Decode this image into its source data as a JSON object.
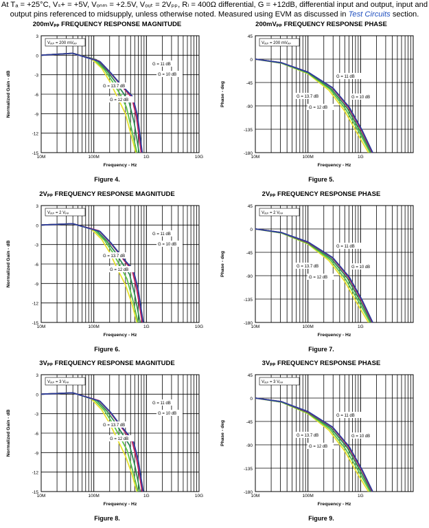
{
  "header": {
    "text": "At Tₐ = +25°C, Vₛ+ = +5V, Vₒₙₘ = +2.5V, Vₒᵤₜ = 2Vₚₚ, Rₗ = 400Ω differential, G = +12dB, differential input and output, input and output pins referenced to midsupply, unless otherwise noted. Measured using EVM as discussed in",
    "link": "Test Circuits",
    "tail": "section."
  },
  "colors": {
    "g137": "#e8e22e",
    "g12": "#5cc24a",
    "g11": "#2e8b57",
    "g10": "#c41e5b",
    "g10b": "#2a3f9d"
  },
  "chart_data": [
    {
      "type": "line",
      "kind": "mag",
      "figure": "Figure 4.",
      "title": "200mVₚₚ FREQUENCY RESPONSE MAGNITUDE",
      "xlabel": "Frequency - Hz",
      "ylabel": "Normalized Gain - dB",
      "xticks": [
        "10M",
        "100M",
        "1G",
        "10G"
      ],
      "yticks": [
        "3",
        "0",
        "-3",
        "-6",
        "-9",
        "-12",
        "-15"
      ],
      "ylim": [
        -15,
        3
      ],
      "xlim_log": [
        7,
        10
      ],
      "legend_box": "Vₒᵤₜ = 200 mVₚₚ",
      "annotations": [
        "G = 11 dB",
        "G = 10 dB",
        "G = 13.7 dB",
        "G = 12 dB"
      ],
      "series": [
        {
          "name": "G = 13.7 dB",
          "color": "#e8e22e",
          "x": [
            7,
            7.6,
            7.95,
            8.15,
            8.3,
            8.45,
            8.6,
            8.7,
            8.8
          ],
          "y": [
            0,
            0.3,
            -0.5,
            -2,
            -4,
            -6.5,
            -9,
            -12,
            -15
          ]
        },
        {
          "name": "G = 12 dB",
          "color": "#5cc24a",
          "x": [
            7,
            7.6,
            8.0,
            8.2,
            8.35,
            8.5,
            8.62,
            8.72,
            8.82
          ],
          "y": [
            0,
            0.3,
            -0.6,
            -2.2,
            -4,
            -6,
            -8,
            -11.5,
            -15
          ]
        },
        {
          "name": "G = 11 dB",
          "color": "#2e8b57",
          "x": [
            7,
            7.6,
            8.05,
            8.25,
            8.4,
            8.55,
            8.67,
            8.77,
            8.86
          ],
          "y": [
            0,
            0.3,
            -0.7,
            -2.4,
            -4,
            -5.7,
            -7.2,
            -10.5,
            -15
          ]
        },
        {
          "name": "G = 10 dB",
          "color": "#c41e5b",
          "x": [
            7,
            7.6,
            8.1,
            8.3,
            8.45,
            8.6,
            8.72,
            8.81,
            8.9
          ],
          "y": [
            0,
            0.3,
            -0.9,
            -2.6,
            -4,
            -5.4,
            -6.5,
            -9.5,
            -15
          ]
        },
        {
          "name": "G = 10 dB",
          "color": "#2a3f9d",
          "x": [
            7,
            7.6,
            8.12,
            8.32,
            8.47,
            8.62,
            8.74,
            8.83,
            8.92
          ],
          "y": [
            0,
            0.3,
            -1.0,
            -2.7,
            -4.1,
            -5.4,
            -6.4,
            -9.3,
            -15
          ]
        }
      ]
    },
    {
      "type": "line",
      "kind": "phase",
      "figure": "Figure 5.",
      "title": "200mVₚₚ FREQUENCY RESPONSE PHASE",
      "xlabel": "Frequency - Hz",
      "ylabel": "Phase - deg",
      "xticks": [
        "10M",
        "100M",
        "1G"
      ],
      "yticks": [
        "45",
        "0",
        "-45",
        "-90",
        "-135",
        "-180"
      ],
      "ylim": [
        -180,
        45
      ],
      "xlim_log": [
        7,
        10
      ],
      "legend_box": "Vₒᵤₜ = 200 mVₚₚ",
      "annotations": [
        "G = 11 dB",
        "G = 13.7 dB",
        "G = 10 dB",
        "G = 12 dB"
      ],
      "series": [
        {
          "name": "G = 13.7 dB",
          "color": "#e8e22e",
          "x": [
            7,
            7.5,
            8.0,
            8.4,
            8.7,
            8.95,
            9.15
          ],
          "y": [
            0,
            -8,
            -28,
            -60,
            -100,
            -145,
            -180
          ]
        },
        {
          "name": "G = 12 dB",
          "color": "#5cc24a",
          "x": [
            7,
            7.5,
            8.0,
            8.42,
            8.72,
            8.98,
            9.18
          ],
          "y": [
            0,
            -8,
            -27,
            -58,
            -97,
            -142,
            -180
          ]
        },
        {
          "name": "G = 11 dB",
          "color": "#2e8b57",
          "x": [
            7,
            7.5,
            8.0,
            8.44,
            8.75,
            9.0,
            9.2
          ],
          "y": [
            0,
            -7,
            -26,
            -57,
            -95,
            -140,
            -180
          ]
        },
        {
          "name": "G = 10 dB",
          "color": "#c41e5b",
          "x": [
            7,
            7.5,
            8.0,
            8.46,
            8.77,
            9.02,
            9.22
          ],
          "y": [
            0,
            -7,
            -25,
            -55,
            -93,
            -138,
            -180
          ]
        },
        {
          "name": "G = 10 dB",
          "color": "#2a3f9d",
          "x": [
            7,
            7.5,
            8.0,
            8.47,
            8.78,
            9.03,
            9.23
          ],
          "y": [
            0,
            -7,
            -25,
            -55,
            -92,
            -137,
            -180
          ]
        }
      ]
    },
    {
      "type": "line",
      "kind": "mag",
      "figure": "Figure 6.",
      "title": "2Vₚₚ FREQUENCY RESPONSE MAGNITUDE",
      "xlabel": "Frequency - Hz",
      "ylabel": "Normalized Gain - dB",
      "xticks": [
        "10M",
        "100M",
        "1G",
        "10G"
      ],
      "yticks": [
        "3",
        "0",
        "-3",
        "-6",
        "-9",
        "-12",
        "-15"
      ],
      "ylim": [
        -15,
        3
      ],
      "xlim_log": [
        7,
        10
      ],
      "legend_box": "Vₒᵤₜ = 2 Vₚₚ",
      "annotations": [
        "G = 11 dB",
        "G = 10 dB",
        "G = 13.7 dB",
        "G = 12 dB"
      ],
      "series": [
        {
          "name": "G = 13.7 dB",
          "color": "#e8e22e",
          "x": [
            7,
            7.6,
            7.95,
            8.15,
            8.3,
            8.45,
            8.6,
            8.72,
            8.82
          ],
          "y": [
            0,
            0.2,
            -0.6,
            -2.2,
            -4.2,
            -6.8,
            -9.2,
            -12,
            -15
          ]
        },
        {
          "name": "G = 12 dB",
          "color": "#5cc24a",
          "x": [
            7,
            7.6,
            8.0,
            8.2,
            8.35,
            8.5,
            8.63,
            8.74,
            8.84
          ],
          "y": [
            0,
            0.2,
            -0.7,
            -2.3,
            -4.1,
            -6.3,
            -8.3,
            -11.5,
            -15
          ]
        },
        {
          "name": "G = 11 dB",
          "color": "#2e8b57",
          "x": [
            7,
            7.6,
            8.05,
            8.25,
            8.4,
            8.55,
            8.68,
            8.78,
            8.88
          ],
          "y": [
            0,
            0.2,
            -0.8,
            -2.5,
            -4.1,
            -6,
            -7.6,
            -10.8,
            -15
          ]
        },
        {
          "name": "G = 10 dB",
          "color": "#c41e5b",
          "x": [
            7,
            7.6,
            8.1,
            8.3,
            8.45,
            8.6,
            8.73,
            8.82,
            8.92
          ],
          "y": [
            0,
            0.2,
            -0.9,
            -2.6,
            -4.1,
            -5.7,
            -7,
            -10,
            -15
          ]
        },
        {
          "name": "G = 10 dB",
          "color": "#2a3f9d",
          "x": [
            7,
            7.6,
            8.12,
            8.32,
            8.47,
            8.62,
            8.75,
            8.84,
            8.94
          ],
          "y": [
            0,
            0.2,
            -1.0,
            -2.7,
            -4.2,
            -5.7,
            -6.9,
            -9.8,
            -15
          ]
        }
      ]
    },
    {
      "type": "line",
      "kind": "phase",
      "figure": "Figure 7.",
      "title": "2Vₚₚ FREQUENCY RESPONSE PHASE",
      "xlabel": "Frequency - Hz",
      "ylabel": "Phase - deg",
      "xticks": [
        "10M",
        "100M",
        "1G"
      ],
      "yticks": [
        "45",
        "0",
        "-45",
        "-90",
        "-135",
        "-180"
      ],
      "ylim": [
        -180,
        45
      ],
      "xlim_log": [
        7,
        10
      ],
      "legend_box": "Vₒᵤₜ = 2 Vₚₚ",
      "annotations": [
        "G = 11 dB",
        "G = 13.7 dB",
        "G = 10 dB",
        "G = 12 dB"
      ],
      "series": [
        {
          "name": "G = 13.7 dB",
          "color": "#e8e22e",
          "x": [
            7,
            7.5,
            8.0,
            8.4,
            8.7,
            8.95,
            9.15
          ],
          "y": [
            0,
            -8,
            -29,
            -61,
            -101,
            -146,
            -180
          ]
        },
        {
          "name": "G = 12 dB",
          "color": "#5cc24a",
          "x": [
            7,
            7.5,
            8.0,
            8.42,
            8.72,
            8.98,
            9.18
          ],
          "y": [
            0,
            -8,
            -28,
            -59,
            -98,
            -143,
            -180
          ]
        },
        {
          "name": "G = 11 dB",
          "color": "#2e8b57",
          "x": [
            7,
            7.5,
            8.0,
            8.44,
            8.75,
            9.0,
            9.2
          ],
          "y": [
            0,
            -7,
            -27,
            -57,
            -95,
            -140,
            -180
          ]
        },
        {
          "name": "G = 10 dB",
          "color": "#c41e5b",
          "x": [
            7,
            7.5,
            8.0,
            8.46,
            8.77,
            9.02,
            9.22
          ],
          "y": [
            0,
            -7,
            -26,
            -55,
            -93,
            -138,
            -180
          ]
        },
        {
          "name": "G = 10 dB",
          "color": "#2a3f9d",
          "x": [
            7,
            7.5,
            8.0,
            8.47,
            8.78,
            9.03,
            9.23
          ],
          "y": [
            0,
            -7,
            -25,
            -55,
            -92,
            -137,
            -180
          ]
        }
      ]
    },
    {
      "type": "line",
      "kind": "mag",
      "figure": "Figure 8.",
      "title": "3Vₚₚ FREQUENCY RESPONSE MAGNITUDE",
      "xlabel": "Frequency - Hz",
      "ylabel": "Normalized Gain - dB",
      "xticks": [
        "10M",
        "100M",
        "1G",
        "10G"
      ],
      "yticks": [
        "3",
        "0",
        "-3",
        "-6",
        "-9",
        "-12",
        "-15"
      ],
      "ylim": [
        -15,
        3
      ],
      "xlim_log": [
        7,
        10
      ],
      "legend_box": "Vₒᵤₜ = 3 Vₚₚ",
      "annotations": [
        "G = 11 dB",
        "G = 10 dB",
        "G = 13.7 dB",
        "G = 12 dB"
      ],
      "series": [
        {
          "name": "G = 13.7 dB",
          "color": "#e8e22e",
          "x": [
            7,
            7.6,
            7.95,
            8.15,
            8.3,
            8.45,
            8.6,
            8.72,
            8.82
          ],
          "y": [
            0,
            0.2,
            -0.7,
            -2.4,
            -4.5,
            -7,
            -9.5,
            -12.2,
            -15
          ]
        },
        {
          "name": "G = 12 dB",
          "color": "#5cc24a",
          "x": [
            7,
            7.6,
            8.0,
            8.2,
            8.35,
            8.5,
            8.63,
            8.74,
            8.84
          ],
          "y": [
            0,
            0.2,
            -0.8,
            -2.5,
            -4.4,
            -6.6,
            -8.6,
            -11.8,
            -15
          ]
        },
        {
          "name": "G = 11 dB",
          "color": "#2e8b57",
          "x": [
            7,
            7.6,
            8.05,
            8.25,
            8.4,
            8.55,
            8.68,
            8.78,
            8.88
          ],
          "y": [
            0,
            0.2,
            -0.9,
            -2.6,
            -4.3,
            -6.2,
            -7.9,
            -11,
            -15
          ]
        },
        {
          "name": "G = 10 dB",
          "color": "#c41e5b",
          "x": [
            7,
            7.6,
            8.1,
            8.3,
            8.45,
            8.6,
            8.73,
            8.82,
            8.92
          ],
          "y": [
            0,
            0.2,
            -1.0,
            -2.7,
            -4.3,
            -5.9,
            -7.3,
            -10.2,
            -15
          ]
        },
        {
          "name": "G = 10 dB",
          "color": "#2a3f9d",
          "x": [
            7,
            7.6,
            8.12,
            8.32,
            8.47,
            8.62,
            8.75,
            8.84,
            8.94
          ],
          "y": [
            0,
            0.2,
            -1.1,
            -2.8,
            -4.4,
            -5.9,
            -7.2,
            -10,
            -15
          ]
        }
      ]
    },
    {
      "type": "line",
      "kind": "phase",
      "figure": "Figure 9.",
      "title": "3Vₚₚ FREQUENCY RESPONSE PHASE",
      "xlabel": "Frequency - Hz",
      "ylabel": "Phase - deg",
      "xticks": [
        "10M",
        "100M",
        "1G"
      ],
      "yticks": [
        "45",
        "0",
        "-45",
        "-90",
        "-135",
        "-180"
      ],
      "ylim": [
        -180,
        45
      ],
      "xlim_log": [
        7,
        10
      ],
      "legend_box": "Vₒᵤₜ = 3 Vₚₚ",
      "annotations": [
        "G = 11 dB",
        "G = 13.7 dB",
        "G = 10 dB",
        "G = 12 dB"
      ],
      "series": [
        {
          "name": "G = 13.7 dB",
          "color": "#e8e22e",
          "x": [
            7,
            7.5,
            8.0,
            8.4,
            8.7,
            8.95,
            9.15
          ],
          "y": [
            0,
            -8,
            -30,
            -62,
            -102,
            -147,
            -180
          ]
        },
        {
          "name": "G = 12 dB",
          "color": "#5cc24a",
          "x": [
            7,
            7.5,
            8.0,
            8.42,
            8.72,
            8.98,
            9.18
          ],
          "y": [
            0,
            -8,
            -29,
            -60,
            -99,
            -144,
            -180
          ]
        },
        {
          "name": "G = 11 dB",
          "color": "#2e8b57",
          "x": [
            7,
            7.5,
            8.0,
            8.44,
            8.75,
            9.0,
            9.2
          ],
          "y": [
            0,
            -7,
            -28,
            -58,
            -96,
            -141,
            -180
          ]
        },
        {
          "name": "G = 10 dB",
          "color": "#c41e5b",
          "x": [
            7,
            7.5,
            8.0,
            8.46,
            8.77,
            9.02,
            9.22
          ],
          "y": [
            0,
            -7,
            -27,
            -56,
            -94,
            -139,
            -180
          ]
        },
        {
          "name": "G = 10 dB",
          "color": "#2a3f9d",
          "x": [
            7,
            7.5,
            8.0,
            8.47,
            8.78,
            9.03,
            9.23
          ],
          "y": [
            0,
            -7,
            -26,
            -56,
            -93,
            -138,
            -180
          ]
        }
      ]
    }
  ]
}
